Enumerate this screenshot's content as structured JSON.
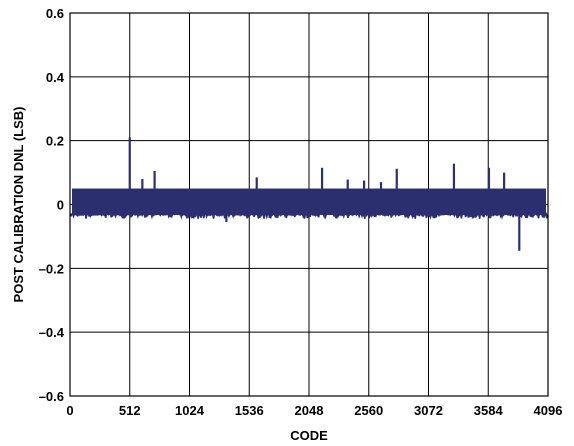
{
  "chart_data": {
    "type": "line",
    "title": "",
    "xlabel": "CODE",
    "ylabel": "POST CALIBRATION DNL (LSB)",
    "xlim": [
      0,
      4096
    ],
    "ylim": [
      -0.6,
      0.6
    ],
    "xticks": [
      0,
      512,
      1024,
      1536,
      2048,
      2560,
      3072,
      3584,
      4096
    ],
    "xtick_labels": [
      "0",
      "512",
      "1024",
      "1536",
      "2048",
      "2560",
      "3072",
      "3584",
      "4096"
    ],
    "yticks": [
      0.6,
      0.4,
      0.2,
      0,
      -0.2,
      -0.4,
      -0.6
    ],
    "ytick_labels": [
      "0.6",
      "0.4",
      "0.2",
      "0",
      "–0.2",
      "–0.4",
      "–0.6"
    ],
    "grid": true,
    "series": [
      {
        "color": "#2b2f70",
        "baseline_band": [
          -0.03,
          0.05
        ],
        "baseline_dip_min": -0.045,
        "spikes": [
          {
            "x": 512,
            "y": 0.21
          },
          {
            "x": 620,
            "y": 0.08
          },
          {
            "x": 725,
            "y": 0.105
          },
          {
            "x": 1340,
            "y": -0.055
          },
          {
            "x": 1600,
            "y": 0.085
          },
          {
            "x": 2160,
            "y": 0.115
          },
          {
            "x": 2380,
            "y": 0.078
          },
          {
            "x": 2520,
            "y": 0.075
          },
          {
            "x": 2665,
            "y": 0.07
          },
          {
            "x": 2800,
            "y": 0.112
          },
          {
            "x": 3290,
            "y": 0.128
          },
          {
            "x": 3590,
            "y": 0.115
          },
          {
            "x": 3720,
            "y": 0.1
          },
          {
            "x": 3850,
            "y": -0.145
          }
        ]
      }
    ]
  }
}
